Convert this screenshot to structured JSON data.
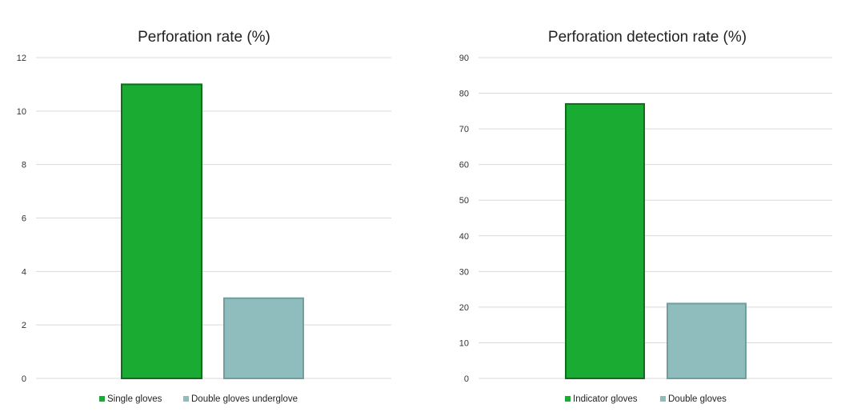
{
  "colors": {
    "green": "#1aac32",
    "green_edge": "#0d6e1c",
    "teal": "#8fbcbc",
    "teal_edge": "#6f9e9e",
    "grid": "#d9d9d9"
  },
  "chart_data": [
    {
      "type": "bar",
      "title": "Perforation rate (%)",
      "xlabel": "",
      "ylabel": "",
      "ylim": [
        0,
        12
      ],
      "yticks": [
        "0",
        "2",
        "4",
        "6",
        "8",
        "10",
        "12"
      ],
      "grid": true,
      "legend_position": "bottom",
      "series": [
        {
          "name": "Single gloves",
          "value": 11,
          "color": "green"
        },
        {
          "name": "Double gloves underglove",
          "value": 3,
          "color": "teal"
        }
      ]
    },
    {
      "type": "bar",
      "title": "Perforation detection rate (%)",
      "xlabel": "",
      "ylabel": "",
      "ylim": [
        0,
        90
      ],
      "yticks": [
        "0",
        "10",
        "20",
        "30",
        "40",
        "50",
        "60",
        "70",
        "80",
        "90"
      ],
      "grid": true,
      "legend_position": "bottom",
      "series": [
        {
          "name": "Indicator gloves",
          "value": 77,
          "color": "green"
        },
        {
          "name": "Double gloves",
          "value": 21,
          "color": "teal"
        }
      ]
    }
  ]
}
